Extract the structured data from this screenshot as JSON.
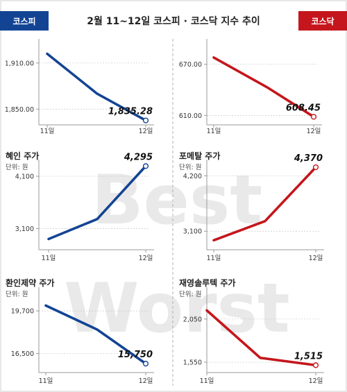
{
  "header": {
    "title": "2월 11~12일 코스피 · 코스닥 지수 추이",
    "badge_left": "코스피",
    "badge_right": "코스닥"
  },
  "colors": {
    "kospi": "#134494",
    "kosdaq": "#c4161c",
    "axis": "#9a9a9a",
    "grid": "#c8c8c8",
    "watermark": "#e9e9e9",
    "border": "#cfcfcf"
  },
  "watermark": {
    "best": "Best",
    "worst": "Worst"
  },
  "chart_data": [
    {
      "type": "line",
      "title": "",
      "unit": "",
      "x": [
        "11일",
        "",
        "12일"
      ],
      "values": [
        1922,
        1870,
        1835.28
      ],
      "value_label": "1,835.28",
      "ylim": [
        1834,
        1936
      ],
      "yticks": [
        {
          "value": 1910,
          "label": "1,910.00"
        },
        {
          "value": 1850,
          "label": "1,850.00"
        }
      ],
      "color": "kospi"
    },
    {
      "type": "line",
      "title": "",
      "unit": "",
      "x": [
        "11일",
        "",
        "12일"
      ],
      "values": [
        678,
        643,
        608.45
      ],
      "value_label": "608.45",
      "ylim": [
        603,
        695
      ],
      "yticks": [
        {
          "value": 670,
          "label": "670.00"
        },
        {
          "value": 610,
          "label": "610.00"
        }
      ],
      "color": "kosdaq"
    },
    {
      "type": "line",
      "title": "혜인 주가",
      "unit": "단위: 원",
      "x": [
        "11일",
        "",
        "12일"
      ],
      "values": [
        2900,
        3280,
        4295
      ],
      "value_label": "4,295",
      "ylim": [
        2760,
        4340
      ],
      "yticks": [
        {
          "value": 4100,
          "label": "4,100"
        },
        {
          "value": 3100,
          "label": "3,100"
        }
      ],
      "color": "kospi"
    },
    {
      "type": "line",
      "title": "포메탈 주가",
      "unit": "단위: 원",
      "x": [
        "11일",
        "",
        "12일"
      ],
      "values": [
        2920,
        3300,
        4370
      ],
      "value_label": "4,370",
      "ylim": [
        2800,
        4440
      ],
      "yticks": [
        {
          "value": 4200,
          "label": "4,200"
        },
        {
          "value": 3100,
          "label": "3,100"
        }
      ],
      "color": "kosdaq"
    },
    {
      "type": "line",
      "title": "환인제약 주가",
      "unit": "단위: 원",
      "x": [
        "11일",
        "",
        "12일"
      ],
      "values": [
        20100,
        18300,
        15750
      ],
      "value_label": "15,750",
      "ylim": [
        15340,
        21160
      ],
      "yticks": [
        {
          "value": 19700,
          "label": "19,700"
        },
        {
          "value": 16500,
          "label": "16,500"
        }
      ],
      "color": "kospi"
    },
    {
      "type": "line",
      "title": "재영솔루텍 주가",
      "unit": "단위: 원",
      "x": [
        "11일",
        "",
        "12일"
      ],
      "values": [
        2150,
        1600,
        1515
      ],
      "value_label": "1,515",
      "ylim": [
        1470,
        2370
      ],
      "yticks": [
        {
          "value": 2050,
          "label": "2,050"
        },
        {
          "value": 1550,
          "label": "1,550"
        }
      ],
      "color": "kosdaq"
    }
  ]
}
